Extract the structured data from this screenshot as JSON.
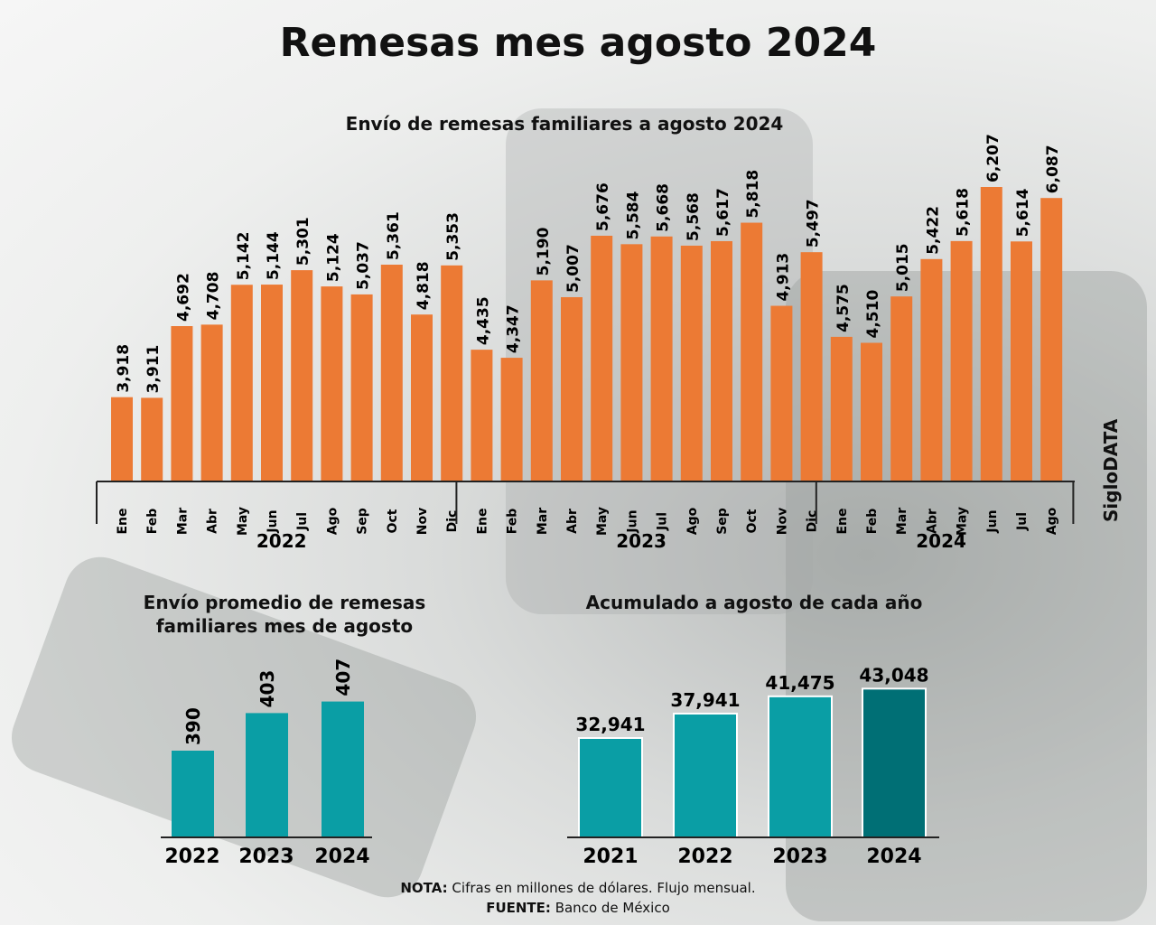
{
  "title": "Remesas mes agosto 2024",
  "brand": "SigloDATA",
  "note_label": "NOTA:",
  "note_text": "Cifras en millones de dólares. Flujo mensual.",
  "source_label": "FUENTE:",
  "source_text": "Banco de México",
  "chart_data": [
    {
      "type": "bar",
      "title": "Envío de remesas familiares a agosto 2024",
      "ylim": [
        3000,
        6500
      ],
      "bar_color": "#ec7a34",
      "groups": [
        {
          "year": "2022",
          "months": [
            "Ene",
            "Feb",
            "Mar",
            "Abr",
            "May",
            "Jun",
            "Jul",
            "Ago",
            "Sep",
            "Oct",
            "Nov",
            "Dic"
          ],
          "values": [
            3918,
            3911,
            4692,
            4708,
            5142,
            5144,
            5301,
            5124,
            5037,
            5361,
            4818,
            5353
          ]
        },
        {
          "year": "2023",
          "months": [
            "Ene",
            "Feb",
            "Mar",
            "Abr",
            "May",
            "Jun",
            "Jul",
            "Ago",
            "Sep",
            "Oct",
            "Nov",
            "Dic"
          ],
          "values": [
            4435,
            4347,
            5190,
            5007,
            5676,
            5584,
            5668,
            5568,
            5617,
            5818,
            4913,
            5497
          ]
        },
        {
          "year": "2024",
          "months": [
            "Ene",
            "Feb",
            "Mar",
            "Abr",
            "May",
            "Jun",
            "Jul",
            "Ago"
          ],
          "values": [
            4575,
            4510,
            5015,
            5422,
            5618,
            6207,
            5614,
            6087
          ]
        }
      ]
    },
    {
      "type": "bar",
      "title": "Envío promedio de remesas familiares mes de agosto",
      "categories": [
        "2022",
        "2023",
        "2024"
      ],
      "values": [
        390,
        403,
        407
      ],
      "ylim": [
        360,
        410
      ],
      "bar_color": "#0a9ea5"
    },
    {
      "type": "bar",
      "title": "Acumulado a agosto de cada año",
      "categories": [
        "2021",
        "2022",
        "2023",
        "2024"
      ],
      "values": [
        32941,
        37941,
        41475,
        43048
      ],
      "ylim": [
        12600,
        45000
      ],
      "bar_color": "#0a9ea5",
      "highlight_color": "#006f75"
    }
  ]
}
